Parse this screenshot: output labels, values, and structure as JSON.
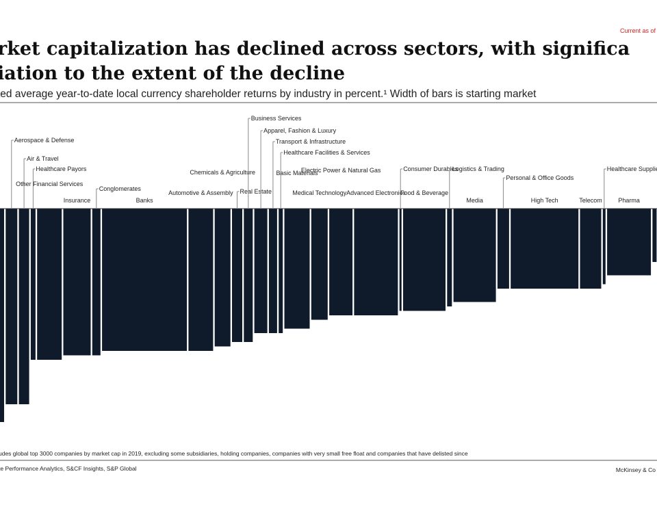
{
  "chart_data": {
    "type": "bar",
    "title_lines": [
      "rket capitalization has declined across sectors, with significa",
      "iation to the extent of the decline"
    ],
    "subtitle": "ted average year-to-date local currency shareholder returns by industry in percent.¹ Width of bars is starting market",
    "date_note": "Current as of",
    "footnote": "udes global top 3000 companies by market cap in 2019, excluding some subsidiaries, holding companies, companies with very small free float and companies that have delisted since",
    "source": "te Performance Analytics, S&CF Insights, S&P Global",
    "brand": "McKinsey & Co",
    "color": "#0f1a2b",
    "categories": [
      null,
      "Aerospace & Defense",
      "Air & Travel",
      "Healthcare Payors",
      "Other Financial Services",
      "Insurance",
      "Conglomerates",
      "Banks",
      "Automotive & Assembly",
      "Chemicals & Agriculture",
      "Real Estate",
      "Business Services",
      "Apparel, Fashion & Luxury",
      "Transport & Infrastructure",
      "Healthcare Facilities & Services",
      "Basic Materials",
      "Medical Technology",
      "Electric Power & Natural Gas",
      "Advanced Electronics",
      "Consumer Durables",
      "Food & Beverage",
      "Logistics & Trading",
      "Media",
      "Personal & Office Goods",
      "High Tech",
      "Telecom",
      "Healthcare Supplies & Distribution",
      "Pharma",
      null
    ],
    "values": [
      -48,
      -44,
      -44,
      -34,
      -34,
      -33,
      -33,
      -32,
      -32,
      -31,
      -30,
      -30,
      -28,
      -28,
      -28,
      -27,
      -25,
      -24,
      -24,
      -23,
      -23,
      -22,
      -21,
      -18,
      -18,
      -18,
      -17,
      -15,
      -12
    ],
    "widths": [
      6,
      17,
      15,
      7,
      36,
      40,
      12,
      124,
      36,
      23,
      15,
      13,
      19,
      12,
      6,
      37,
      24,
      34,
      64,
      3,
      62,
      7,
      62,
      17,
      99,
      31,
      4,
      64,
      6
    ]
  }
}
